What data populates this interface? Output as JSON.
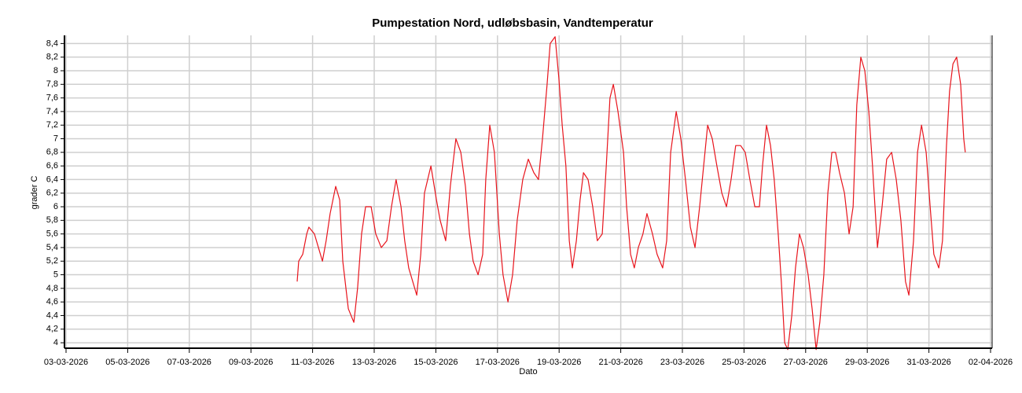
{
  "chart_data": {
    "type": "line",
    "title": "Pumpestation Nord, udløbsbasin, Vandtemperatur",
    "xlabel": "Dato",
    "ylabel": "grader C",
    "color": "#e8141c",
    "grid": true,
    "xlim": [
      3,
      33
    ],
    "ylim": [
      3.92,
      8.52
    ],
    "xticks": [
      {
        "value": 3,
        "label": "03-03-2026"
      },
      {
        "value": 5,
        "label": "05-03-2026"
      },
      {
        "value": 7,
        "label": "07-03-2026"
      },
      {
        "value": 9,
        "label": "09-03-2026"
      },
      {
        "value": 11,
        "label": "11-03-2026"
      },
      {
        "value": 13,
        "label": "13-03-2026"
      },
      {
        "value": 15,
        "label": "15-03-2026"
      },
      {
        "value": 17,
        "label": "17-03-2026"
      },
      {
        "value": 19,
        "label": "19-03-2026"
      },
      {
        "value": 21,
        "label": "21-03-2026"
      },
      {
        "value": 23,
        "label": "23-03-2026"
      },
      {
        "value": 25,
        "label": "25-03-2026"
      },
      {
        "value": 27,
        "label": "27-03-2026"
      },
      {
        "value": 29,
        "label": "29-03-2026"
      },
      {
        "value": 31,
        "label": "31-03-2026"
      },
      {
        "value": 33,
        "label": "02-04-2026"
      }
    ],
    "yticks": [
      4,
      {
        "value": 4.2,
        "label": "4,2"
      },
      {
        "value": 4.4,
        "label": "4,4"
      },
      {
        "value": 4.6,
        "label": "4,6"
      },
      {
        "value": 4.8,
        "label": "4,8"
      },
      5,
      {
        "value": 5.2,
        "label": "5,2"
      },
      {
        "value": 5.4,
        "label": "5,4"
      },
      {
        "value": 5.6,
        "label": "5,6"
      },
      {
        "value": 5.8,
        "label": "5,8"
      },
      6,
      {
        "value": 6.2,
        "label": "6,2"
      },
      {
        "value": 6.4,
        "label": "6,4"
      },
      {
        "value": 6.6,
        "label": "6,6"
      },
      {
        "value": 6.8,
        "label": "6,8"
      },
      7,
      {
        "value": 7.2,
        "label": "7,2"
      },
      {
        "value": 7.4,
        "label": "7,4"
      },
      {
        "value": 7.6,
        "label": "7,6"
      },
      {
        "value": 7.8,
        "label": "7,8"
      },
      8,
      {
        "value": 8.2,
        "label": "8,2"
      },
      {
        "value": 8.4,
        "label": "8,4"
      }
    ],
    "x": [
      10.5,
      10.55,
      10.68,
      10.81,
      10.88,
      11.06,
      11.19,
      11.32,
      11.44,
      11.57,
      11.75,
      11.88,
      11.98,
      12.16,
      12.34,
      12.46,
      12.59,
      12.72,
      12.9,
      13.05,
      13.23,
      13.41,
      13.56,
      13.71,
      13.87,
      13.99,
      14.12,
      14.25,
      14.38,
      14.51,
      14.63,
      14.84,
      15.02,
      15.14,
      15.32,
      15.47,
      15.65,
      15.81,
      15.96,
      16.09,
      16.21,
      16.37,
      16.52,
      16.62,
      16.75,
      16.9,
      17.06,
      17.18,
      17.34,
      17.49,
      17.64,
      17.82,
      18.0,
      18.18,
      18.33,
      18.46,
      18.61,
      18.71,
      18.87,
      18.99,
      19.1,
      19.22,
      19.33,
      19.43,
      19.56,
      19.68,
      19.79,
      19.94,
      20.09,
      20.24,
      20.4,
      20.53,
      20.65,
      20.76,
      20.91,
      21.09,
      21.19,
      21.32,
      21.44,
      21.57,
      21.72,
      21.85,
      22.03,
      22.18,
      22.36,
      22.49,
      22.62,
      22.8,
      22.95,
      23.1,
      23.26,
      23.41,
      23.56,
      23.69,
      23.82,
      23.97,
      24.12,
      24.28,
      24.43,
      24.58,
      24.73,
      24.89,
      25.04,
      25.19,
      25.35,
      25.5,
      25.6,
      25.73,
      25.86,
      25.98,
      26.11,
      26.21,
      26.32,
      26.42,
      26.55,
      26.67,
      26.8,
      26.93,
      27.08,
      27.21,
      27.34,
      27.46,
      27.59,
      27.72,
      27.85,
      27.97,
      28.1,
      28.26,
      28.41,
      28.54,
      28.66,
      28.79,
      28.92,
      29.05,
      29.17,
      29.33,
      29.48,
      29.63,
      29.79,
      29.94,
      30.09,
      30.24,
      30.35,
      30.5,
      30.63,
      30.76,
      30.91,
      31.04,
      31.16,
      31.32,
      31.44,
      31.57,
      31.67,
      31.78,
      31.9,
      32.03,
      32.13,
      32.18
    ],
    "values": [
      4.9,
      5.2,
      5.3,
      5.6,
      5.7,
      5.6,
      5.4,
      5.2,
      5.5,
      5.9,
      6.3,
      6.1,
      5.2,
      4.5,
      4.3,
      4.8,
      5.6,
      6.0,
      6.0,
      5.6,
      5.4,
      5.5,
      6.0,
      6.4,
      6.0,
      5.5,
      5.1,
      4.9,
      4.7,
      5.3,
      6.2,
      6.6,
      6.1,
      5.8,
      5.5,
      6.3,
      7.0,
      6.8,
      6.3,
      5.6,
      5.2,
      5.0,
      5.3,
      6.4,
      7.2,
      6.8,
      5.6,
      5.0,
      4.6,
      5.0,
      5.8,
      6.4,
      6.7,
      6.5,
      6.4,
      7.0,
      7.8,
      8.4,
      8.5,
      7.9,
      7.2,
      6.6,
      5.5,
      5.1,
      5.5,
      6.1,
      6.5,
      6.4,
      6.0,
      5.5,
      5.6,
      6.6,
      7.6,
      7.8,
      7.4,
      6.8,
      6.0,
      5.3,
      5.1,
      5.4,
      5.6,
      5.9,
      5.6,
      5.3,
      5.1,
      5.5,
      6.8,
      7.4,
      7.0,
      6.4,
      5.7,
      5.4,
      6.0,
      6.6,
      7.2,
      7.0,
      6.6,
      6.2,
      6.0,
      6.4,
      6.9,
      6.9,
      6.8,
      6.4,
      6.0,
      6.0,
      6.6,
      7.2,
      6.9,
      6.4,
      5.6,
      4.9,
      4.0,
      3.9,
      4.4,
      5.1,
      5.6,
      5.4,
      5.0,
      4.5,
      3.9,
      4.3,
      5.0,
      6.2,
      6.8,
      6.8,
      6.5,
      6.2,
      5.6,
      6.0,
      7.5,
      8.2,
      8.0,
      7.4,
      6.6,
      5.4,
      6.0,
      6.7,
      6.8,
      6.4,
      5.8,
      4.9,
      4.7,
      5.5,
      6.8,
      7.2,
      6.8,
      6.0,
      5.3,
      5.1,
      5.5,
      6.9,
      7.7,
      8.1,
      8.2,
      7.8,
      7.0,
      6.8
    ]
  }
}
